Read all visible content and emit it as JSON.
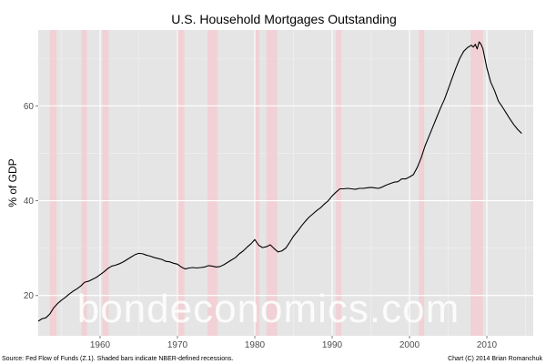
{
  "chart_data": {
    "type": "line",
    "title": "U.S. Household Mortgages Outstanding",
    "xlabel": "",
    "ylabel": "% of GDP",
    "xlim": [
      1952,
      2016
    ],
    "ylim": [
      11.5,
      76
    ],
    "x_ticks": [
      1960,
      1970,
      1980,
      1990,
      2000,
      2010
    ],
    "y_ticks": [
      20,
      40,
      60
    ],
    "grid": true,
    "legend": "none",
    "recessions": [
      [
        1953.5,
        1954.4
      ],
      [
        1957.6,
        1958.3
      ],
      [
        1960.3,
        1961.1
      ],
      [
        1969.9,
        1970.9
      ],
      [
        1973.9,
        1975.2
      ],
      [
        1980.0,
        1980.6
      ],
      [
        1981.5,
        1982.9
      ],
      [
        1990.5,
        1991.2
      ],
      [
        2001.2,
        2001.9
      ],
      [
        2007.9,
        2009.5
      ]
    ],
    "series": [
      {
        "x": [
          1952.0,
          1952.5,
          1953.0,
          1953.5,
          1954.0,
          1954.5,
          1955.0,
          1955.5,
          1956.0,
          1956.5,
          1957.0,
          1957.5,
          1958.0,
          1958.5,
          1959.0,
          1959.5,
          1960.0,
          1960.5,
          1961.0,
          1961.5,
          1962.0,
          1962.5,
          1963.0,
          1963.5,
          1964.0,
          1964.5,
          1965.0,
          1965.5,
          1966.0,
          1966.5,
          1967.0,
          1967.5,
          1968.0,
          1968.5,
          1969.0,
          1969.5,
          1970.0,
          1970.5,
          1971.0,
          1971.5,
          1972.0,
          1972.5,
          1973.0,
          1973.5,
          1974.0,
          1974.5,
          1975.0,
          1975.5,
          1976.0,
          1976.5,
          1977.0,
          1977.5,
          1978.0,
          1978.5,
          1979.0,
          1979.5,
          1980.0,
          1980.5,
          1981.0,
          1981.5,
          1982.0,
          1982.5,
          1983.0,
          1983.5,
          1984.0,
          1984.5,
          1985.0,
          1985.5,
          1986.0,
          1986.5,
          1987.0,
          1987.5,
          1988.0,
          1988.5,
          1989.0,
          1989.5,
          1990.0,
          1990.5,
          1991.0,
          1991.5,
          1992.0,
          1992.5,
          1993.0,
          1993.5,
          1994.0,
          1994.5,
          1995.0,
          1995.5,
          1996.0,
          1996.5,
          1997.0,
          1997.5,
          1998.0,
          1998.5,
          1999.0,
          1999.5,
          2000.0,
          2000.5,
          2001.0,
          2001.5,
          2002.0,
          2002.5,
          2003.0,
          2003.5,
          2004.0,
          2004.5,
          2005.0,
          2005.5,
          2006.0,
          2006.5,
          2007.0,
          2007.5,
          2008.0,
          2008.25,
          2008.5,
          2008.75,
          2009.0,
          2009.25,
          2009.5,
          2009.75,
          2010.0,
          2010.5,
          2011.0,
          2011.5,
          2012.0,
          2012.5,
          2013.0,
          2013.5,
          2014.0,
          2014.5
        ],
        "values": [
          14.6,
          15.1,
          15.3,
          16.1,
          17.4,
          18.3,
          19.0,
          19.6,
          20.3,
          20.9,
          21.4,
          22.0,
          22.8,
          23.0,
          23.4,
          23.8,
          24.4,
          25.0,
          25.7,
          26.2,
          26.4,
          26.7,
          27.1,
          27.6,
          28.1,
          28.6,
          28.9,
          28.8,
          28.5,
          28.3,
          28.0,
          27.8,
          27.6,
          27.2,
          27.1,
          26.8,
          26.6,
          26.0,
          25.6,
          25.8,
          25.9,
          25.8,
          25.9,
          26.0,
          26.3,
          26.2,
          26.0,
          26.1,
          26.5,
          27.0,
          27.5,
          28.0,
          28.8,
          29.4,
          30.2,
          30.9,
          31.8,
          30.6,
          30.1,
          30.3,
          30.7,
          29.9,
          29.2,
          29.4,
          30.0,
          31.2,
          32.5,
          33.5,
          34.6,
          35.6,
          36.5,
          37.2,
          37.9,
          38.5,
          39.3,
          40.0,
          41.0,
          41.8,
          42.5,
          42.5,
          42.6,
          42.5,
          42.4,
          42.6,
          42.6,
          42.7,
          42.8,
          42.7,
          42.6,
          42.9,
          43.3,
          43.6,
          43.9,
          44.0,
          44.6,
          44.6,
          45.0,
          45.5,
          47.0,
          49.0,
          51.5,
          53.5,
          55.5,
          57.5,
          59.5,
          61.3,
          63.5,
          65.8,
          68.0,
          70.0,
          71.5,
          72.3,
          72.8,
          72.4,
          73.0,
          72.0,
          73.5,
          73.0,
          72.0,
          70.0,
          68.0,
          65.0,
          63.2,
          61.0,
          59.8,
          58.5,
          57.2,
          56.0,
          55.0,
          54.2
        ]
      }
    ]
  },
  "watermark": "bondeconomics.com",
  "footer": {
    "source": "Source: Fed Flow of Funds (Z.1). Shaded bars indicate NBER-defined recessions.",
    "credit": "Chart (C) 2014 Brian Romanchuk"
  }
}
